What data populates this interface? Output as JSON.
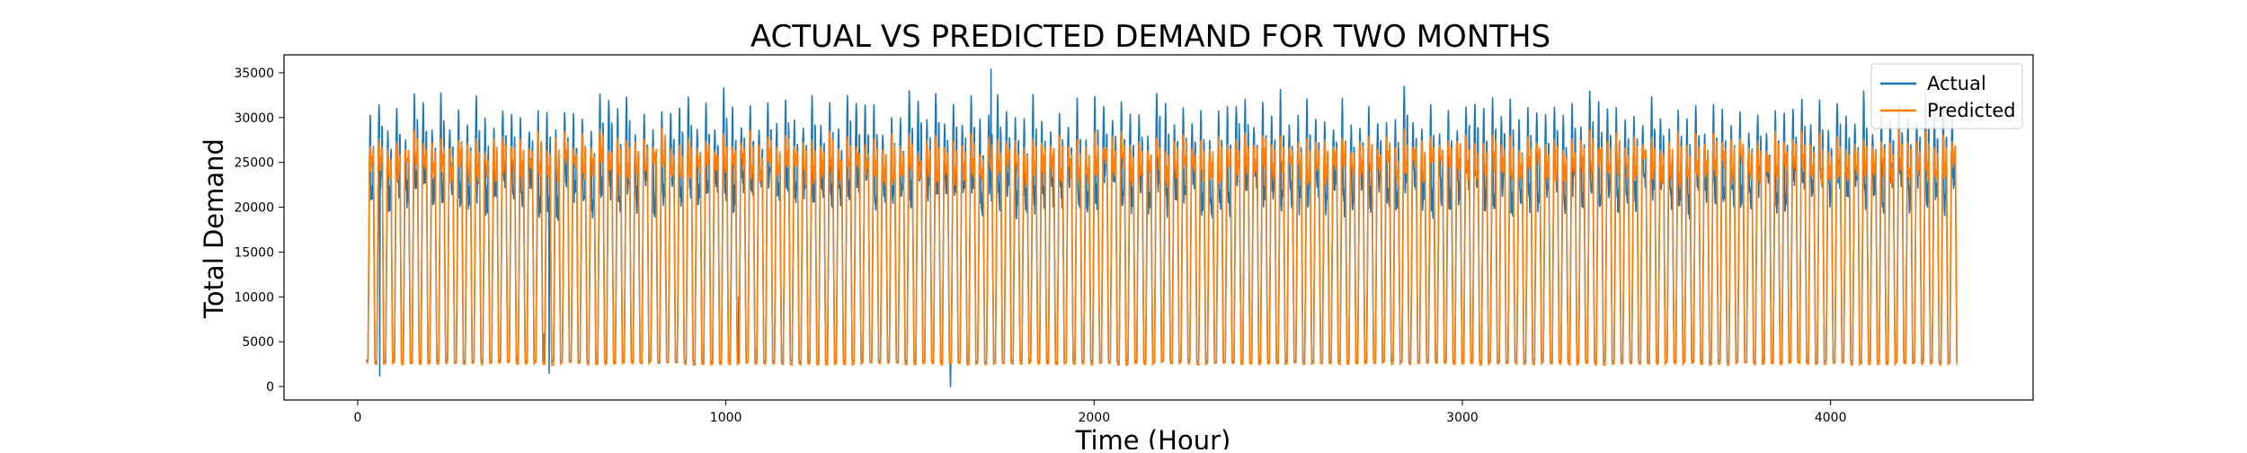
{
  "chart_data": {
    "type": "line",
    "title": "ACTUAL VS PREDICTED DEMAND FOR TWO MONTHS",
    "xlabel": "Time (Hour)",
    "ylabel": "Total Demand",
    "xlim": [
      -200,
      4550
    ],
    "ylim": [
      -1500,
      37000
    ],
    "xticks": [
      0,
      1000,
      2000,
      3000,
      4000
    ],
    "yticks": [
      0,
      5000,
      10000,
      15000,
      20000,
      25000,
      30000,
      35000
    ],
    "x_range": [
      24,
      4344
    ],
    "x_step": 1,
    "cycle_period_hours": 24,
    "grid": false,
    "legend_position": "top-right",
    "series": [
      {
        "name": "Actual",
        "color": "#1f77b4",
        "night_low": 2800,
        "day_plateau": 22000,
        "weekday_peaks": [
          31000,
          33200,
          30500,
          32400,
          29800,
          33600,
          31800
        ],
        "peak_noise": 1600,
        "day_noise": 1800,
        "notable_points": [
          {
            "x": 60,
            "y": 1200
          },
          {
            "x": 520,
            "y": 1500
          },
          {
            "x": 505,
            "y": 5900
          },
          {
            "x": 1035,
            "y": 10000
          },
          {
            "x": 1610,
            "y": 0
          },
          {
            "x": 1720,
            "y": 35400
          }
        ]
      },
      {
        "name": "Predicted",
        "color": "#ff7f0e",
        "night_low": 2600,
        "day_plateau": 24500,
        "weekday_peaks": [
          27800,
          28600,
          27400,
          28400,
          27200,
          28700,
          26900
        ],
        "peak_noise": 700,
        "day_noise": 1100,
        "notable_points": []
      }
    ]
  }
}
